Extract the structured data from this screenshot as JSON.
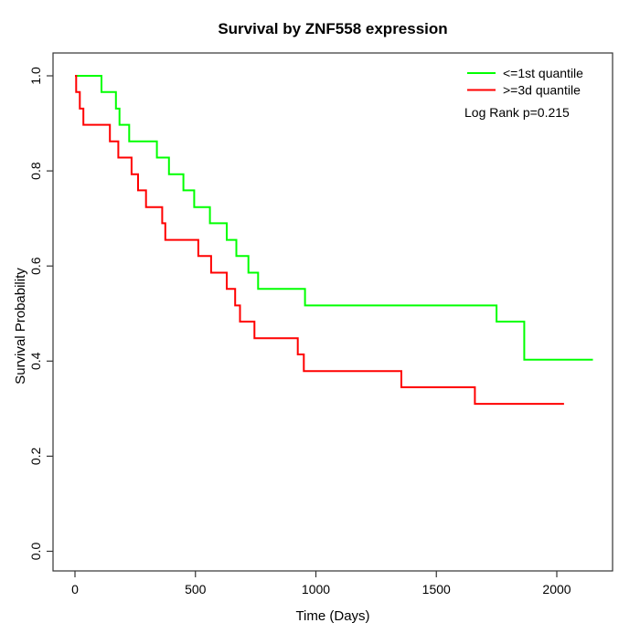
{
  "chart_data": {
    "type": "line",
    "subtype": "kaplan_meier_step",
    "title": "Survival by ZNF558 expression",
    "xlabel": "Time (Days)",
    "ylabel": "Survival Probability",
    "xlim": [
      0,
      2250
    ],
    "ylim": [
      0,
      1
    ],
    "xticks": [
      0,
      500,
      1000,
      1500,
      2000
    ],
    "xtick_labels": [
      "0",
      "500",
      "1000",
      "1500",
      "2000"
    ],
    "yticks": [
      0,
      0.2,
      0.4,
      0.6,
      0.8,
      1.0
    ],
    "ytick_labels": [
      "0.0",
      "0.2",
      "0.4",
      "0.6",
      "0.8",
      "1.0"
    ],
    "grid": false,
    "legend_position": "top-right",
    "annotation": "Log Rank p=0.215",
    "series": [
      {
        "name": "<=1st quantile",
        "color": "#00ff00",
        "end_time": 2150,
        "steps": [
          [
            0,
            1.0
          ],
          [
            110,
            0.966
          ],
          [
            170,
            0.931
          ],
          [
            185,
            0.897
          ],
          [
            225,
            0.862
          ],
          [
            340,
            0.828
          ],
          [
            390,
            0.793
          ],
          [
            450,
            0.759
          ],
          [
            495,
            0.724
          ],
          [
            560,
            0.69
          ],
          [
            630,
            0.655
          ],
          [
            670,
            0.621
          ],
          [
            720,
            0.586
          ],
          [
            760,
            0.552
          ],
          [
            955,
            0.517
          ],
          [
            1750,
            0.483
          ],
          [
            1865,
            0.403
          ]
        ]
      },
      {
        "name": ">=3d quantile",
        "color": "#ff0000",
        "end_time": 2030,
        "steps": [
          [
            0,
            1.0
          ],
          [
            5,
            0.966
          ],
          [
            20,
            0.931
          ],
          [
            35,
            0.897
          ],
          [
            145,
            0.862
          ],
          [
            180,
            0.828
          ],
          [
            235,
            0.793
          ],
          [
            262,
            0.759
          ],
          [
            295,
            0.724
          ],
          [
            362,
            0.69
          ],
          [
            375,
            0.655
          ],
          [
            512,
            0.621
          ],
          [
            565,
            0.586
          ],
          [
            630,
            0.552
          ],
          [
            665,
            0.517
          ],
          [
            685,
            0.483
          ],
          [
            745,
            0.448
          ],
          [
            925,
            0.414
          ],
          [
            950,
            0.379
          ],
          [
            1355,
            0.345
          ],
          [
            1660,
            0.31
          ]
        ]
      }
    ]
  }
}
